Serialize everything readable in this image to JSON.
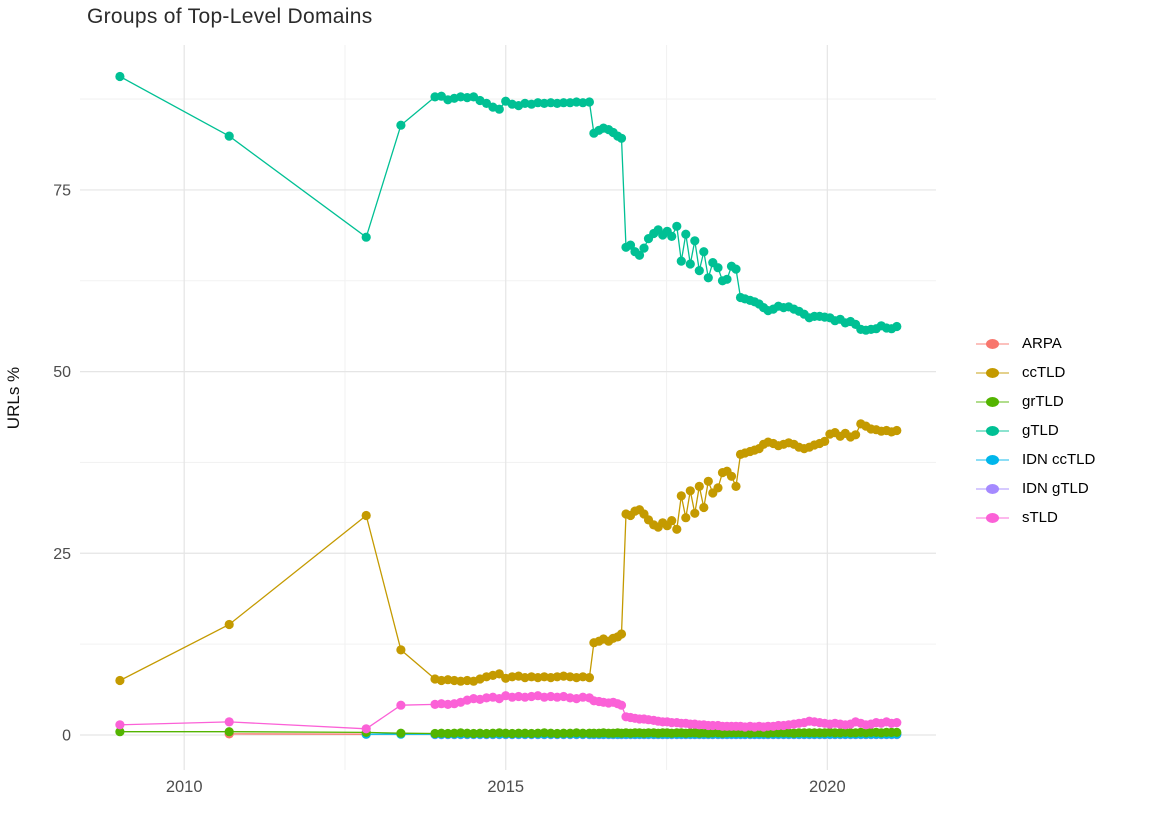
{
  "chart_data": {
    "type": "line",
    "title": "Groups of Top-Level Domains",
    "xlabel": "",
    "ylabel": "URLs %",
    "grid": "on",
    "legend_position": "right",
    "xlim": [
      2008.38,
      2021.69
    ],
    "ylim": [
      -4.82,
      94.94
    ],
    "x_ticks": [
      {
        "v": 2010,
        "label": "2010"
      },
      {
        "v": 2015,
        "label": "2015"
      },
      {
        "v": 2020,
        "label": "2020"
      }
    ],
    "y_ticks": [
      {
        "v": 0,
        "label": "0"
      },
      {
        "v": 25,
        "label": "25"
      },
      {
        "v": 50,
        "label": "50"
      },
      {
        "v": 75,
        "label": "75"
      }
    ],
    "x_minor": [
      2012.5,
      2017.5
    ],
    "y_minor": [
      12.5,
      37.5,
      62.5,
      87.5
    ],
    "x_dense": [
      2013.9,
      2014.0,
      2014.1,
      2014.2,
      2014.3,
      2014.4,
      2014.5,
      2014.6,
      2014.7,
      2014.8,
      2014.9,
      2015.0,
      2015.1,
      2015.2,
      2015.3,
      2015.4,
      2015.5,
      2015.6,
      2015.7,
      2015.8,
      2015.9,
      2016.0,
      2016.1,
      2016.2,
      2016.3,
      2016.37,
      2016.45,
      2016.52,
      2016.6,
      2016.67,
      2016.74,
      2016.8,
      2016.87,
      2016.94,
      2017.01,
      2017.08,
      2017.15,
      2017.22,
      2017.3,
      2017.37,
      2017.44,
      2017.51,
      2017.58,
      2017.66,
      2017.73,
      2017.8,
      2017.87,
      2017.94,
      2018.01,
      2018.08,
      2018.15,
      2018.22,
      2018.3,
      2018.37,
      2018.44,
      2018.51,
      2018.58,
      2018.65,
      2018.72,
      2018.8,
      2018.87,
      2018.94,
      2019.01,
      2019.08,
      2019.16,
      2019.24,
      2019.32,
      2019.4,
      2019.48,
      2019.56,
      2019.64,
      2019.72,
      2019.8,
      2019.88,
      2019.96,
      2020.04,
      2020.12,
      2020.2,
      2020.28,
      2020.36,
      2020.44,
      2020.52,
      2020.6,
      2020.68,
      2020.76,
      2020.84,
      2020.92,
      2021.0,
      2021.08
    ],
    "series": [
      {
        "name": "ARPA",
        "color": "#F8766D",
        "x_early": [
          2010.7,
          2012.83
        ],
        "y_early": [
          0.15,
          0.1
        ],
        "y_dense": null
      },
      {
        "name": "ccTLD",
        "color": "#C49A00",
        "x_early": [
          2009.0,
          2010.7,
          2012.83,
          2013.37
        ],
        "y_early": [
          7.5,
          15.2,
          30.2,
          11.7
        ],
        "y_dense": [
          7.7,
          7.5,
          7.6,
          7.5,
          7.4,
          7.5,
          7.4,
          7.7,
          8.0,
          8.2,
          8.4,
          7.8,
          8.0,
          8.1,
          7.9,
          8.0,
          7.9,
          8.0,
          7.9,
          8.0,
          8.1,
          8.0,
          7.9,
          8.0,
          7.9,
          12.7,
          12.9,
          13.2,
          12.9,
          13.3,
          13.5,
          13.9,
          30.4,
          30.2,
          30.8,
          31.0,
          30.4,
          29.6,
          28.9,
          28.6,
          29.2,
          28.8,
          29.5,
          28.3,
          32.9,
          29.9,
          33.6,
          30.5,
          34.2,
          31.3,
          34.9,
          33.3,
          34.0,
          36.1,
          36.3,
          35.6,
          34.2,
          38.6,
          38.8,
          39.0,
          39.2,
          39.4,
          40.0,
          40.3,
          40.1,
          39.8,
          40.0,
          40.2,
          40.0,
          39.6,
          39.4,
          39.6,
          39.9,
          40.1,
          40.4,
          41.4,
          41.6,
          41.1,
          41.5,
          41.0,
          41.3,
          42.8,
          42.5,
          42.1,
          42.0,
          41.8,
          41.9,
          41.7,
          41.9
        ]
      },
      {
        "name": "grTLD",
        "color": "#53B400",
        "x_early": [
          2009.0,
          2010.7,
          2012.83,
          2013.37
        ],
        "y_early": [
          0.45,
          0.45,
          0.35,
          0.25
        ],
        "y_dense": [
          0.2,
          0.25,
          0.2,
          0.25,
          0.3,
          0.25,
          0.2,
          0.25,
          0.2,
          0.25,
          0.3,
          0.25,
          0.2,
          0.25,
          0.25,
          0.2,
          0.25,
          0.3,
          0.25,
          0.2,
          0.25,
          0.25,
          0.3,
          0.25,
          0.25,
          0.25,
          0.25,
          0.3,
          0.25,
          0.25,
          0.3,
          0.25,
          0.3,
          0.25,
          0.3,
          0.3,
          0.25,
          0.3,
          0.3,
          0.25,
          0.3,
          0.3,
          0.25,
          0.3,
          0.3,
          0.25,
          0.3,
          0.3,
          0.25,
          0.3,
          0.25,
          0.3,
          0.3,
          0.25,
          0.3,
          0.3,
          0.3,
          0.3,
          0.3,
          0.25,
          0.3,
          0.3,
          0.3,
          0.25,
          0.3,
          0.3,
          0.3,
          0.3,
          0.25,
          0.3,
          0.3,
          0.3,
          0.3,
          0.3,
          0.3,
          0.35,
          0.3,
          0.3,
          0.35,
          0.3,
          0.3,
          0.35,
          0.3,
          0.35,
          0.35,
          0.3,
          0.35,
          0.35,
          0.35
        ]
      },
      {
        "name": "gTLD",
        "color": "#00C094",
        "x_early": [
          2009.0,
          2010.7,
          2012.83,
          2013.37
        ],
        "y_early": [
          90.6,
          82.4,
          68.5,
          83.9
        ],
        "y_dense": [
          87.8,
          87.9,
          87.4,
          87.6,
          87.8,
          87.7,
          87.8,
          87.3,
          86.9,
          86.4,
          86.1,
          87.2,
          86.8,
          86.6,
          86.9,
          86.8,
          87.0,
          86.9,
          87.0,
          86.9,
          87.0,
          87.0,
          87.1,
          87.0,
          87.1,
          82.8,
          83.2,
          83.5,
          83.3,
          82.9,
          82.4,
          82.1,
          67.1,
          67.4,
          66.5,
          66.0,
          67.0,
          68.3,
          69.0,
          69.5,
          68.8,
          69.3,
          68.6,
          70.0,
          65.2,
          68.9,
          64.8,
          68.0,
          63.9,
          66.5,
          62.9,
          65.0,
          64.3,
          62.5,
          62.7,
          64.5,
          64.1,
          60.2,
          60.0,
          59.8,
          59.6,
          59.3,
          58.8,
          58.4,
          58.6,
          59.0,
          58.8,
          58.9,
          58.6,
          58.3,
          57.9,
          57.4,
          57.6,
          57.6,
          57.5,
          57.4,
          57.0,
          57.2,
          56.7,
          56.9,
          56.5,
          55.8,
          55.7,
          55.8,
          55.9,
          56.3,
          56.0,
          55.9,
          56.2
        ]
      },
      {
        "name": "IDN ccTLD",
        "color": "#00B6EB",
        "x_early": [
          2012.83,
          2013.37
        ],
        "y_early": [
          0.1,
          0.1
        ],
        "y_dense": 0.1
      },
      {
        "name": "IDN gTLD",
        "color": "#A58AFF",
        "x_early": [],
        "y_early": [],
        "y_dense": 0.05
      },
      {
        "name": "sTLD",
        "color": "#FB61D7",
        "x_early": [
          2009.0,
          2010.7,
          2012.83,
          2013.37
        ],
        "y_early": [
          1.4,
          1.8,
          0.85,
          4.1
        ],
        "y_dense": [
          4.2,
          4.3,
          4.2,
          4.3,
          4.5,
          4.8,
          5.0,
          4.9,
          5.1,
          5.2,
          5.0,
          5.4,
          5.2,
          5.3,
          5.2,
          5.3,
          5.4,
          5.2,
          5.3,
          5.2,
          5.3,
          5.1,
          5.0,
          5.2,
          5.1,
          4.7,
          4.6,
          4.5,
          4.4,
          4.5,
          4.3,
          4.1,
          2.5,
          2.4,
          2.3,
          2.2,
          2.2,
          2.1,
          2.0,
          1.9,
          1.8,
          1.8,
          1.7,
          1.7,
          1.6,
          1.6,
          1.5,
          1.5,
          1.4,
          1.4,
          1.3,
          1.3,
          1.3,
          1.2,
          1.2,
          1.2,
          1.2,
          1.2,
          1.1,
          1.2,
          1.1,
          1.2,
          1.1,
          1.2,
          1.2,
          1.3,
          1.3,
          1.4,
          1.5,
          1.6,
          1.7,
          1.9,
          1.8,
          1.7,
          1.6,
          1.5,
          1.6,
          1.5,
          1.4,
          1.5,
          1.8,
          1.6,
          1.4,
          1.5,
          1.7,
          1.6,
          1.8,
          1.6,
          1.7
        ]
      }
    ]
  }
}
